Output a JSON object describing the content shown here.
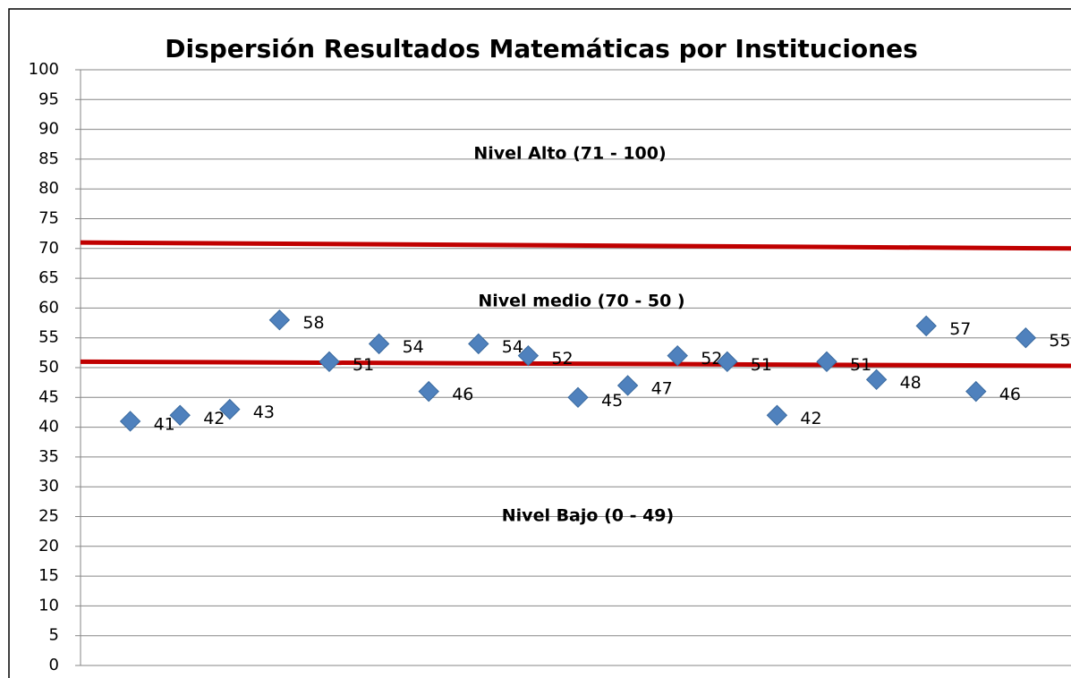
{
  "chart_data": {
    "type": "scatter",
    "title": "Dispersión Resultados Matemáticas por Instituciones",
    "x": [
      1,
      2,
      3,
      4,
      5,
      6,
      7,
      8,
      9,
      10,
      11,
      12,
      13,
      14,
      15,
      16,
      17,
      18,
      19
    ],
    "values": [
      41,
      42,
      43,
      58,
      51,
      54,
      46,
      54,
      52,
      45,
      47,
      52,
      51,
      42,
      51,
      48,
      57,
      46,
      55
    ],
    "color": "#4f81bd",
    "xlim": [
      0,
      20
    ],
    "ylim": [
      0,
      100
    ],
    "yticks": [
      0,
      5,
      10,
      15,
      20,
      25,
      30,
      35,
      40,
      45,
      50,
      55,
      60,
      65,
      70,
      75,
      80,
      85,
      90,
      95,
      100
    ],
    "grid": true,
    "reference_lines": [
      {
        "color": "#c00000",
        "values": [
          71,
          70
        ]
      },
      {
        "color": "#c00000",
        "values": [
          51,
          50.3
        ]
      }
    ],
    "annotations": [
      "Nivel Alto (71 - 100)",
      "Nivel medio (70 - 50 )",
      "Nivel Bajo (0 - 49)"
    ]
  }
}
